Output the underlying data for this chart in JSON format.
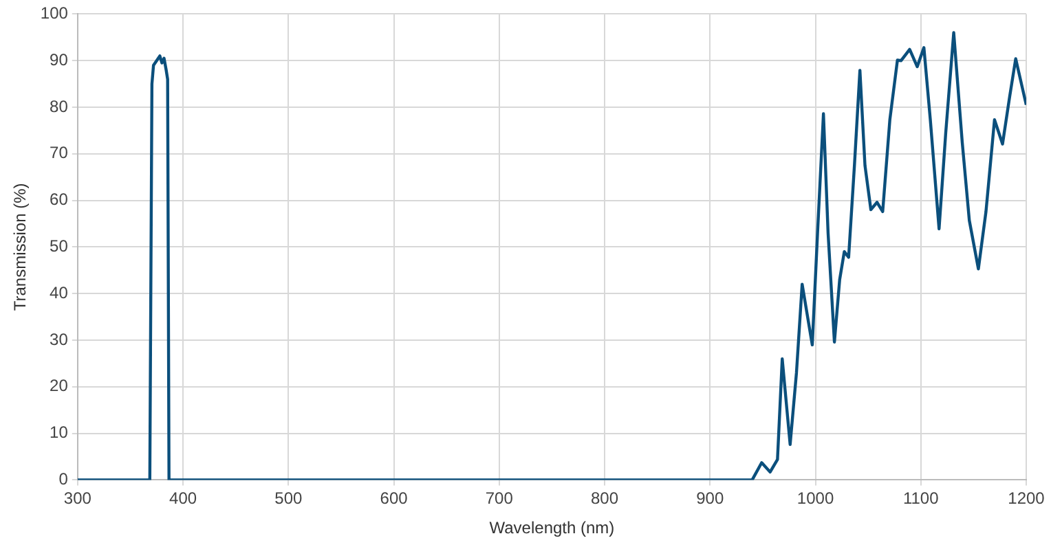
{
  "chart_data": {
    "type": "line",
    "xlabel": "Wavelength (nm)",
    "ylabel": "Transmission (%)",
    "xlim": [
      300,
      1200
    ],
    "xticks": [
      300,
      400,
      500,
      600,
      700,
      800,
      900,
      1000,
      1100,
      1200
    ],
    "ylim": [
      0,
      100
    ],
    "yticks": [
      0,
      10,
      20,
      30,
      40,
      50,
      60,
      70,
      80,
      90,
      100
    ],
    "grid": true,
    "legend": false,
    "marker": "none",
    "line_style": "solid",
    "series": [
      {
        "color": "#0b4f7c",
        "x": [
          300,
          368.5,
          370.5,
          372,
          375,
          378,
          380,
          382,
          384,
          385.4,
          386.7,
          800,
          940,
          949,
          957,
          964,
          968.5,
          976,
          982,
          987.4,
          997,
          1002,
          1007.6,
          1012,
          1018,
          1023,
          1027.4,
          1031.5,
          1037,
          1042.2,
          1047,
          1052.6,
          1058.4,
          1063.8,
          1070.6,
          1077.8,
          1081.3,
          1089.4,
          1096.6,
          1102.9,
          1109,
          1117.3,
          1123.6,
          1131.2,
          1139.3,
          1146,
          1154.6,
          1161.8,
          1169.9,
          1177.5,
          1184.3,
          1190,
          1200
        ],
        "values": [
          0,
          0,
          85,
          89,
          90,
          91,
          89.5,
          90.5,
          88,
          86,
          0,
          0,
          0,
          3.7,
          1.7,
          4.4,
          26,
          7.6,
          23,
          42,
          29,
          53,
          78.6,
          53,
          29.6,
          43,
          49,
          47.8,
          67.5,
          87.9,
          67.5,
          58,
          59.6,
          57.6,
          77.3,
          90.1,
          90,
          92.4,
          88.7,
          92.8,
          77.3,
          53.9,
          74.4,
          96,
          72.4,
          55.7,
          45.3,
          57.6,
          77.3,
          72.1,
          82.3,
          90.4,
          80.5
        ]
      }
    ]
  }
}
